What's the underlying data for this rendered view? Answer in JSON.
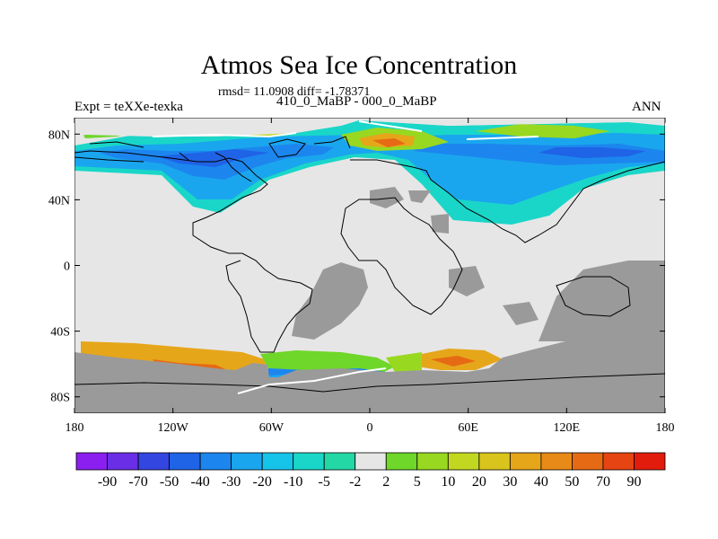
{
  "header": {
    "title": "Atmos Sea Ice Concentration",
    "stats": "rmsd= 11.0908 diff= -1.78371",
    "experiment": "Expt = teXXe-texka",
    "period": "410_0_MaBP - 000_0_MaBP",
    "season": "ANN"
  },
  "axes": {
    "x_ticks": [
      "180",
      "120W",
      "60W",
      "0",
      "60E",
      "120E",
      "180"
    ],
    "y_ticks": [
      "80N",
      "40N",
      "0",
      "40S",
      "80S"
    ]
  },
  "colorbar": {
    "labels": [
      "-90",
      "-70",
      "-50",
      "-40",
      "-30",
      "-20",
      "-10",
      "-5",
      "-2",
      "2",
      "5",
      "10",
      "20",
      "30",
      "40",
      "50",
      "70",
      "90"
    ],
    "colors": [
      "#8a1ff0",
      "#6a2ee6",
      "#3346e0",
      "#1f63e6",
      "#1c86ee",
      "#1aa6ee",
      "#16c4ea",
      "#1ad6c8",
      "#24d8a6",
      "#e6e6e6",
      "#6fd62a",
      "#98d820",
      "#c2d820",
      "#d8c41c",
      "#e6a61a",
      "#e88a18",
      "#e66a14",
      "#e64412",
      "#e21c0c"
    ]
  },
  "map_colors": {
    "land": "#9a9a9a",
    "ocean_no_change": "#e6e6e6",
    "coast": "#000000"
  }
}
